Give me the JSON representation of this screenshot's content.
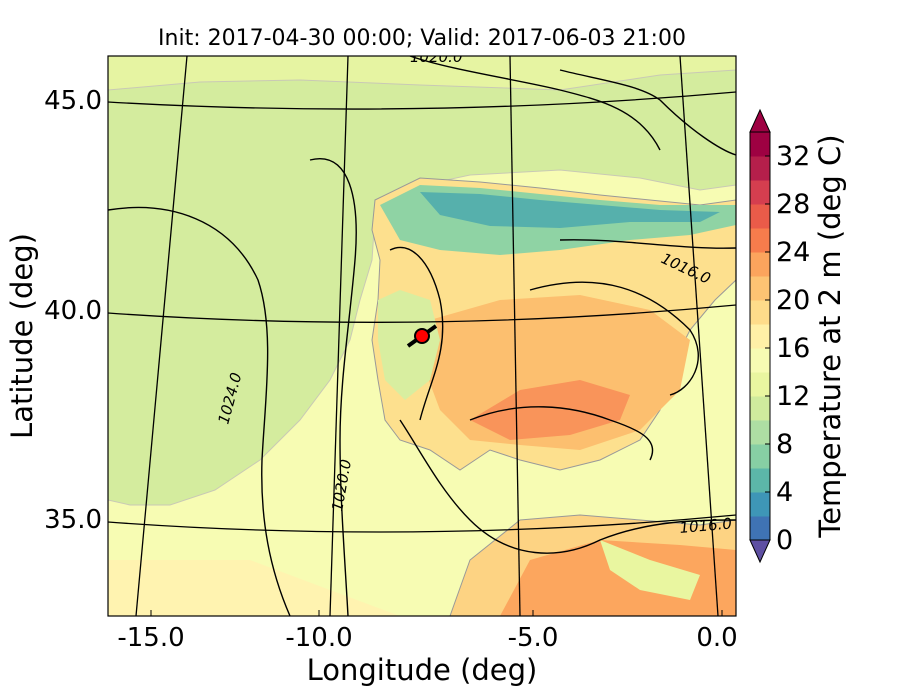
{
  "title": "Init: 2017-04-30 00:00; Valid: 2017-06-03 21:00",
  "map": {
    "xlabel": "Longitude (deg)",
    "ylabel": "Latitude (deg)",
    "x_ticks": [
      "-15.0",
      "-10.0",
      "-5.0",
      "0.0"
    ],
    "y_ticks": [
      "45.0",
      "40.0",
      "35.0"
    ],
    "lon_range": [
      -16,
      0
    ],
    "lat_range": [
      33,
      46
    ],
    "pressure_labels": [
      "1020.0",
      "1016.0",
      "1024.0",
      "1020.0",
      "1016.0"
    ],
    "marker": {
      "lon": -7.8,
      "lat": 39.3,
      "color": "#ff0000"
    }
  },
  "colorbar": {
    "label": "Temperature at 2 m (deg C)",
    "tick_labels": [
      "0",
      "4",
      "8",
      "12",
      "16",
      "20",
      "24",
      "28",
      "32"
    ],
    "levels": [
      0,
      2,
      4,
      6,
      8,
      10,
      12,
      14,
      16,
      18,
      20,
      22,
      24,
      26,
      28,
      30,
      32,
      34
    ],
    "colors": [
      "#5e4fa2",
      "#3f73b4",
      "#3e96b7",
      "#5cb7a9",
      "#87cfa4",
      "#aedea3",
      "#cfeb9d",
      "#e9f6a0",
      "#f7fcb3",
      "#fff0a7",
      "#fedc8a",
      "#fdc373",
      "#fca45d",
      "#f77c4c",
      "#ea5b49",
      "#d53e4f",
      "#b51f4b",
      "#9e0142"
    ]
  }
}
